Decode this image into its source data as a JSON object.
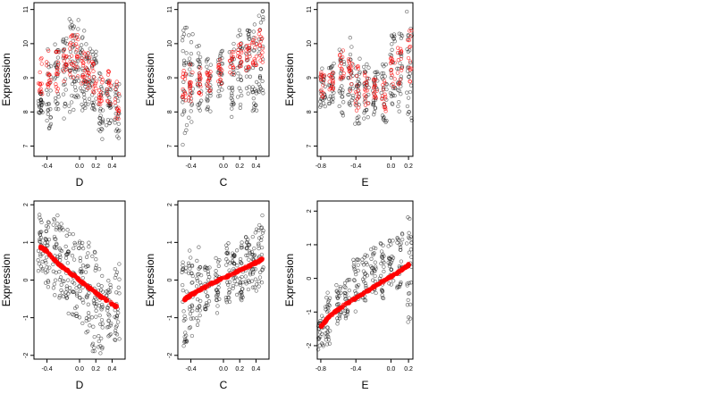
{
  "figure": {
    "panels": [
      {
        "id": "top-D",
        "xlabel": "D",
        "ylabel": "Expression",
        "xticks": [
          -0.4,
          0.0,
          0.2,
          0.4
        ],
        "xtick_labels": [
          "-0.4",
          "0.0",
          "0.2",
          "0.4"
        ],
        "yticks": [
          7,
          8,
          9,
          10,
          11
        ],
        "ytick_labels": [
          "7",
          "8",
          "9",
          "10",
          "11"
        ],
        "xlim": [
          -0.56,
          0.56
        ],
        "ylim": [
          6.7,
          11.2
        ],
        "bands": [
          {
            "x": -0.48,
            "observed": [
              7.9,
              8.6
            ],
            "fitted": [
              8.3,
              9.6
            ]
          },
          {
            "x": -0.38,
            "observed": [
              7.5,
              9.9
            ],
            "fitted": [
              8.7,
              9.9
            ]
          },
          {
            "x": -0.28,
            "observed": [
              8.0,
              10.0
            ],
            "fitted": [
              8.6,
              9.8
            ]
          },
          {
            "x": -0.18,
            "observed": [
              7.8,
              10.2
            ],
            "fitted": [
              8.8,
              10.1
            ]
          },
          {
            "x": -0.1,
            "observed": [
              8.0,
              11.0
            ],
            "fitted": [
              9.0,
              10.3
            ]
          },
          {
            "x": -0.04,
            "observed": [
              8.4,
              10.8
            ],
            "fitted": [
              9.0,
              10.3
            ]
          },
          {
            "x": 0.04,
            "observed": [
              8.0,
              10.4
            ],
            "fitted": [
              8.8,
              10.0
            ]
          },
          {
            "x": 0.1,
            "observed": [
              8.2,
              10.0
            ],
            "fitted": [
              8.6,
              9.8
            ]
          },
          {
            "x": 0.18,
            "observed": [
              7.9,
              9.8
            ],
            "fitted": [
              8.5,
              9.5
            ]
          },
          {
            "x": 0.26,
            "observed": [
              7.2,
              9.2
            ],
            "fitted": [
              8.0,
              9.2
            ]
          },
          {
            "x": 0.36,
            "observed": [
              7.5,
              9.2
            ],
            "fitted": [
              8.1,
              9.2
            ]
          },
          {
            "x": 0.46,
            "observed": [
              7.2,
              8.9
            ],
            "fitted": [
              7.8,
              8.9
            ]
          }
        ]
      },
      {
        "id": "top-C",
        "xlabel": "C",
        "ylabel": "Expression",
        "xticks": [
          -0.4,
          0.0,
          0.2,
          0.4
        ],
        "xtick_labels": [
          "-0.4",
          "0.0",
          "0.2",
          "0.4"
        ],
        "yticks": [
          7,
          8,
          9,
          10,
          11
        ],
        "ytick_labels": [
          "7",
          "8",
          "9",
          "10",
          "11"
        ],
        "xlim": [
          -0.56,
          0.56
        ],
        "ylim": [
          6.7,
          11.2
        ],
        "bands": [
          {
            "x": -0.48,
            "observed": [
              7.0,
              10.5
            ],
            "fitted": [
              8.2,
              9.5
            ]
          },
          {
            "x": -0.4,
            "observed": [
              7.5,
              10.4
            ],
            "fitted": [
              8.3,
              9.5
            ]
          },
          {
            "x": -0.3,
            "observed": [
              8.0,
              10.0
            ],
            "fitted": [
              8.5,
              9.5
            ]
          },
          {
            "x": -0.18,
            "observed": [
              7.9,
              9.6
            ],
            "fitted": [
              8.6,
              9.4
            ]
          },
          {
            "x": -0.04,
            "observed": [
              8.4,
              9.8
            ],
            "fitted": [
              8.8,
              9.6
            ]
          },
          {
            "x": 0.1,
            "observed": [
              7.8,
              10.1
            ],
            "fitted": [
              9.0,
              9.8
            ]
          },
          {
            "x": 0.2,
            "observed": [
              8.0,
              10.4
            ],
            "fitted": [
              9.2,
              10.0
            ]
          },
          {
            "x": 0.3,
            "observed": [
              8.5,
              10.5
            ],
            "fitted": [
              9.2,
              10.0
            ]
          },
          {
            "x": 0.38,
            "observed": [
              8.0,
              10.6
            ],
            "fitted": [
              9.3,
              10.2
            ]
          },
          {
            "x": 0.46,
            "observed": [
              8.4,
              11.0
            ],
            "fitted": [
              9.4,
              10.4
            ]
          }
        ]
      },
      {
        "id": "top-E",
        "xlabel": "E",
        "ylabel": "Expression",
        "xticks": [
          -0.8,
          -0.4,
          0.0,
          0.2
        ],
        "xtick_labels": [
          "-0.8",
          "-0.4",
          "0.0",
          "0.2"
        ],
        "yticks": [
          7,
          8,
          9,
          10,
          11
        ],
        "ytick_labels": [
          "7",
          "8",
          "9",
          "10",
          "11"
        ],
        "xlim": [
          -0.84,
          0.25
        ],
        "ylim": [
          6.7,
          11.2
        ],
        "bands": [
          {
            "x": -0.78,
            "observed": [
              8.0,
              9.4
            ],
            "fitted": [
              8.4,
              9.2
            ]
          },
          {
            "x": -0.68,
            "observed": [
              8.0,
              9.6
            ],
            "fitted": [
              8.6,
              9.3
            ]
          },
          {
            "x": -0.56,
            "observed": [
              7.8,
              10.0
            ],
            "fitted": [
              8.7,
              9.8
            ]
          },
          {
            "x": -0.46,
            "observed": [
              8.2,
              10.2
            ],
            "fitted": [
              8.6,
              9.6
            ]
          },
          {
            "x": -0.38,
            "observed": [
              7.6,
              9.6
            ],
            "fitted": [
              8.0,
              9.4
            ]
          },
          {
            "x": -0.28,
            "observed": [
              7.8,
              9.4
            ],
            "fitted": [
              8.2,
              9.2
            ]
          },
          {
            "x": -0.18,
            "observed": [
              7.9,
              9.2
            ],
            "fitted": [
              8.4,
              9.0
            ]
          },
          {
            "x": -0.08,
            "observed": [
              7.6,
              9.5
            ],
            "fitted": [
              8.0,
              9.0
            ]
          },
          {
            "x": 0.02,
            "observed": [
              8.0,
              10.4
            ],
            "fitted": [
              8.6,
              9.6
            ]
          },
          {
            "x": 0.1,
            "observed": [
              8.0,
              10.4
            ],
            "fitted": [
              8.8,
              10.0
            ]
          },
          {
            "x": 0.21,
            "observed": [
              7.6,
              11.0
            ],
            "fitted": [
              8.8,
              10.4
            ]
          }
        ]
      },
      {
        "id": "bottom-D",
        "xlabel": "D",
        "ylabel": "Expression",
        "xticks": [
          -0.4,
          0.0,
          0.2,
          0.4
        ],
        "xtick_labels": [
          "-0.4",
          "0.0",
          "0.2",
          "0.4"
        ],
        "yticks": [
          -2,
          -1,
          0,
          1,
          2
        ],
        "ytick_labels": [
          "-2",
          "-1",
          "0",
          "1",
          "2"
        ],
        "xlim": [
          -0.56,
          0.56
        ],
        "ylim": [
          -2.1,
          2.1
        ],
        "fitted_line": [
          [
            -0.48,
            0.88
          ],
          [
            -0.44,
            0.82
          ],
          [
            -0.4,
            0.76
          ],
          [
            -0.3,
            0.52
          ],
          [
            -0.22,
            0.36
          ],
          [
            -0.14,
            0.22
          ],
          [
            -0.06,
            0.1
          ],
          [
            0.02,
            -0.05
          ],
          [
            0.1,
            -0.18
          ],
          [
            0.18,
            -0.3
          ],
          [
            0.26,
            -0.44
          ],
          [
            0.36,
            -0.58
          ],
          [
            0.46,
            -0.72
          ]
        ],
        "bands": [
          {
            "x": -0.48,
            "observed": [
              0.2,
              1.8
            ]
          },
          {
            "x": -0.4,
            "observed": [
              -0.2,
              1.6
            ]
          },
          {
            "x": -0.3,
            "observed": [
              -0.4,
              1.8
            ]
          },
          {
            "x": -0.22,
            "observed": [
              -0.6,
              1.5
            ]
          },
          {
            "x": -0.14,
            "observed": [
              -0.9,
              1.6
            ]
          },
          {
            "x": -0.06,
            "observed": [
              -1.0,
              1.4
            ]
          },
          {
            "x": 0.02,
            "observed": [
              -1.2,
              1.2
            ]
          },
          {
            "x": 0.1,
            "observed": [
              -1.4,
              1.0
            ]
          },
          {
            "x": 0.18,
            "observed": [
              -1.9,
              1.0
            ]
          },
          {
            "x": 0.26,
            "observed": [
              -2.0,
              0.6
            ]
          },
          {
            "x": 0.36,
            "observed": [
              -1.6,
              0.2
            ]
          },
          {
            "x": 0.46,
            "observed": [
              -1.6,
              0.6
            ]
          }
        ]
      },
      {
        "id": "bottom-C",
        "xlabel": "C",
        "ylabel": "Expression",
        "xticks": [
          -0.4,
          0.0,
          0.2,
          0.4
        ],
        "xtick_labels": [
          "-0.4",
          "0.0",
          "0.2",
          "0.4"
        ],
        "yticks": [
          -2,
          -1,
          0,
          1,
          2
        ],
        "ytick_labels": [
          "-2",
          "-1",
          "0",
          "1",
          "2"
        ],
        "xlim": [
          -0.56,
          0.56
        ],
        "ylim": [
          -2.1,
          2.1
        ],
        "fitted_line": [
          [
            -0.48,
            -0.52
          ],
          [
            -0.44,
            -0.46
          ],
          [
            -0.4,
            -0.4
          ],
          [
            -0.32,
            -0.3
          ],
          [
            -0.22,
            -0.18
          ],
          [
            -0.1,
            -0.04
          ],
          [
            0.02,
            0.06
          ],
          [
            0.12,
            0.18
          ],
          [
            0.2,
            0.26
          ],
          [
            0.28,
            0.34
          ],
          [
            0.36,
            0.42
          ],
          [
            0.44,
            0.5
          ],
          [
            0.48,
            0.56
          ]
        ],
        "bands": [
          {
            "x": -0.48,
            "observed": [
              -1.8,
              0.6
            ]
          },
          {
            "x": -0.4,
            "observed": [
              -1.5,
              0.8
            ]
          },
          {
            "x": -0.3,
            "observed": [
              -1.2,
              1.0
            ]
          },
          {
            "x": -0.2,
            "observed": [
              -0.8,
              0.4
            ]
          },
          {
            "x": -0.08,
            "observed": [
              -1.0,
              0.6
            ]
          },
          {
            "x": 0.06,
            "observed": [
              -0.6,
              1.0
            ]
          },
          {
            "x": 0.14,
            "observed": [
              -0.4,
              0.8
            ]
          },
          {
            "x": 0.22,
            "observed": [
              -0.6,
              1.0
            ]
          },
          {
            "x": 0.3,
            "observed": [
              -0.4,
              1.2
            ]
          },
          {
            "x": 0.38,
            "observed": [
              -0.4,
              1.4
            ]
          },
          {
            "x": 0.46,
            "observed": [
              -0.2,
              1.9
            ]
          }
        ]
      },
      {
        "id": "bottom-E",
        "xlabel": "E",
        "ylabel": "Expression",
        "xticks": [
          -0.8,
          -0.4,
          0.0,
          0.2
        ],
        "xtick_labels": [
          "-0.8",
          "-0.4",
          "0.0",
          "0.2"
        ],
        "yticks": [
          -2,
          -1,
          0,
          1,
          2
        ],
        "ytick_labels": [
          "-2",
          "-1",
          "0",
          "1",
          "2"
        ],
        "xlim": [
          -0.84,
          0.25
        ],
        "ylim": [
          -2.4,
          2.3
        ],
        "fitted_line": [
          [
            -0.8,
            -1.44
          ],
          [
            -0.75,
            -1.28
          ],
          [
            -0.7,
            -1.12
          ],
          [
            -0.62,
            -0.96
          ],
          [
            -0.52,
            -0.78
          ],
          [
            -0.42,
            -0.62
          ],
          [
            -0.32,
            -0.46
          ],
          [
            -0.22,
            -0.3
          ],
          [
            -0.12,
            -0.14
          ],
          [
            -0.02,
            0.02
          ],
          [
            0.06,
            0.14
          ],
          [
            0.12,
            0.26
          ],
          [
            0.18,
            0.34
          ],
          [
            0.21,
            0.42
          ]
        ],
        "bands": [
          {
            "x": -0.8,
            "observed": [
              -2.2,
              -1.0
            ]
          },
          {
            "x": -0.72,
            "observed": [
              -2.0,
              -0.4
            ]
          },
          {
            "x": -0.6,
            "observed": [
              -1.4,
              -0.2
            ]
          },
          {
            "x": -0.5,
            "observed": [
              -1.2,
              0.0
            ]
          },
          {
            "x": -0.4,
            "observed": [
              -1.0,
              0.6
            ]
          },
          {
            "x": -0.3,
            "observed": [
              -0.8,
              0.8
            ]
          },
          {
            "x": -0.2,
            "observed": [
              -0.6,
              1.0
            ]
          },
          {
            "x": -0.1,
            "observed": [
              -0.6,
              1.2
            ]
          },
          {
            "x": 0.0,
            "observed": [
              -0.2,
              1.2
            ]
          },
          {
            "x": 0.1,
            "observed": [
              -0.4,
              1.4
            ]
          },
          {
            "x": 0.21,
            "observed": [
              -1.4,
              2.0
            ]
          }
        ]
      }
    ]
  },
  "chart_data": [
    {
      "type": "scatter",
      "title": "",
      "xlabel": "D",
      "ylabel": "Expression",
      "xlim": [
        -0.56,
        0.56
      ],
      "ylim": [
        6.7,
        11.2
      ],
      "series": [
        {
          "color": "#000000",
          "values": "observed points, bands from figure.panels[0].bands"
        },
        {
          "color": "#ff0000",
          "values": "fitted points, bands from figure.panels[0].bands"
        }
      ]
    },
    {
      "type": "scatter",
      "title": "",
      "xlabel": "C",
      "ylabel": "Expression",
      "xlim": [
        -0.56,
        0.56
      ],
      "ylim": [
        6.7,
        11.2
      ]
    },
    {
      "type": "scatter",
      "title": "",
      "xlabel": "E",
      "ylabel": "Expression",
      "xlim": [
        -0.84,
        0.25
      ],
      "ylim": [
        6.7,
        11.2
      ]
    },
    {
      "type": "scatter",
      "title": "",
      "xlabel": "D",
      "ylabel": "Expression",
      "xlim": [
        -0.56,
        0.56
      ],
      "ylim": [
        -2.1,
        2.1
      ],
      "fitted_trend": "decreasing from 0.88 at D=-0.48 to -0.72 at D=0.46"
    },
    {
      "type": "scatter",
      "title": "",
      "xlabel": "C",
      "ylabel": "Expression",
      "xlim": [
        -0.56,
        0.56
      ],
      "ylim": [
        -2.1,
        2.1
      ],
      "fitted_trend": "increasing from -0.52 at C=-0.48 to 0.56 at C=0.48"
    },
    {
      "type": "scatter",
      "title": "",
      "xlabel": "E",
      "ylabel": "Expression",
      "xlim": [
        -0.84,
        0.25
      ],
      "ylim": [
        -2.4,
        2.3
      ],
      "fitted_trend": "increasing from -1.44 at E=-0.8 to 0.42 at E=0.21"
    }
  ],
  "colors": {
    "observed": "#000000",
    "fitted": "#ff0000",
    "background": "#ffffff"
  }
}
